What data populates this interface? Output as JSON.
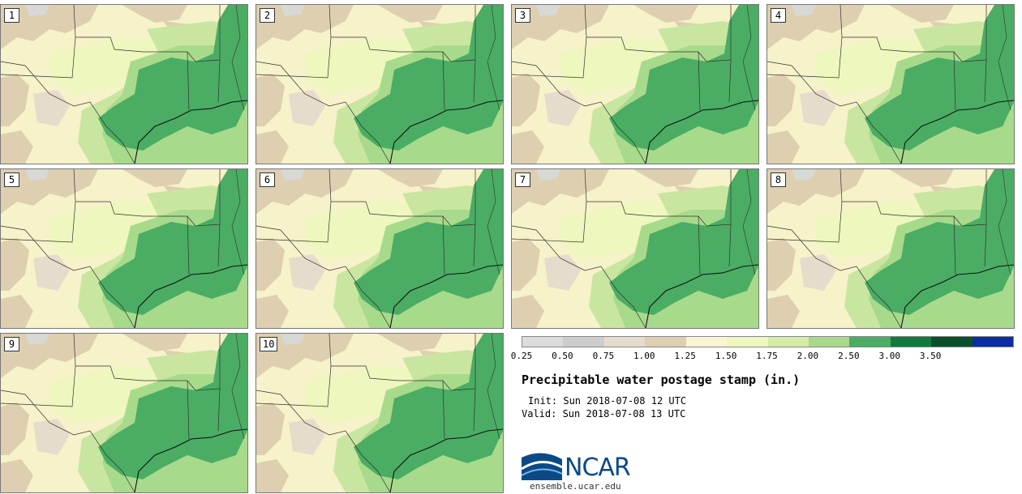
{
  "panels": [
    {
      "label": "1"
    },
    {
      "label": "2"
    },
    {
      "label": "3"
    },
    {
      "label": "4"
    },
    {
      "label": "5"
    },
    {
      "label": "6"
    },
    {
      "label": "7"
    },
    {
      "label": "8"
    },
    {
      "label": "9"
    },
    {
      "label": "10"
    }
  ],
  "legend": {
    "ticks": [
      "0.25",
      "0.50",
      "0.75",
      "1.00",
      "1.25",
      "1.50",
      "1.75",
      "2.00",
      "2.50",
      "3.00",
      "3.50"
    ],
    "colors": [
      "#dcdcdc",
      "#cdcdcd",
      "#e6dccc",
      "#ddcfb0",
      "#faf5d2",
      "#f0f7bc",
      "#d4eca6",
      "#a8da8c",
      "#4aad63",
      "#0e7b3c",
      "#08502a",
      "#0a2da6"
    ]
  },
  "map_colors": {
    "background": "#f6f2c9",
    "tan": "#ddcfb0",
    "gray": "#d8d8d4",
    "pale_yellow": "#eef7bd",
    "light_green": "#c9e6a0",
    "mid_green": "#a8da8c",
    "green": "#4aad63",
    "border": "#333333"
  },
  "title": "Precipitable water postage stamp (in.)",
  "init": "Init: Sun 2018-07-08 12 UTC",
  "valid": "Valid: Sun 2018-07-08 13 UTC",
  "logo": {
    "text": "NCAR",
    "site": "ensemble.ucar.edu"
  }
}
